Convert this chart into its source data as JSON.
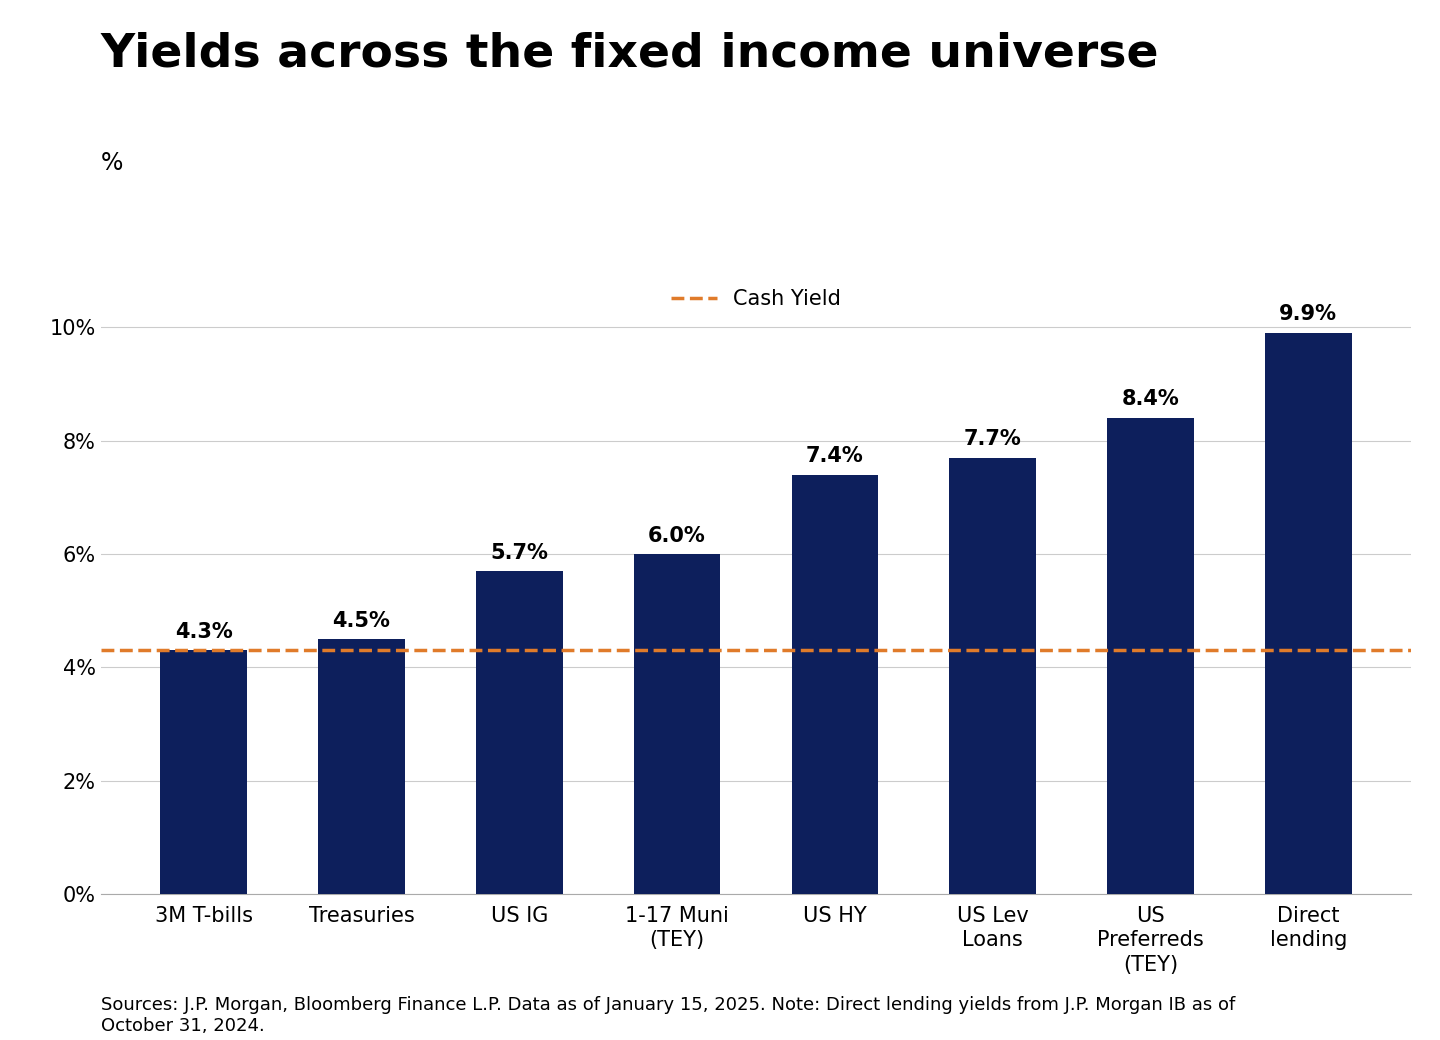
{
  "title": "Yields across the fixed income universe",
  "ylabel": "%",
  "categories": [
    "3M T-bills",
    "Treasuries",
    "US IG",
    "1-17 Muni\n(TEY)",
    "US HY",
    "US Lev\nLoans",
    "US\nPreferreds\n(TEY)",
    "Direct\nlending"
  ],
  "values": [
    4.3,
    4.5,
    5.7,
    6.0,
    7.4,
    7.7,
    8.4,
    9.9
  ],
  "labels": [
    "4.3%",
    "4.5%",
    "5.7%",
    "6.0%",
    "7.4%",
    "7.7%",
    "8.4%",
    "9.9%"
  ],
  "bar_color": "#0d1f5c",
  "cash_yield_value": 4.3,
  "cash_yield_label": "Cash Yield",
  "cash_yield_color": "#e07b2a",
  "ylim_max": 11,
  "yticks": [
    0,
    2,
    4,
    6,
    8,
    10
  ],
  "ytick_labels": [
    "0%",
    "2%",
    "4%",
    "6%",
    "8%",
    "10%"
  ],
  "footnote": "Sources: J.P. Morgan, Bloomberg Finance L.P. Data as of January 15, 2025. Note: Direct lending yields from J.P. Morgan IB as of\nOctober 31, 2024.",
  "background_color": "#ffffff",
  "title_fontsize": 34,
  "bar_label_fontsize": 15,
  "tick_fontsize": 15,
  "footnote_fontsize": 13,
  "legend_fontsize": 15,
  "ylabel_fontsize": 17
}
